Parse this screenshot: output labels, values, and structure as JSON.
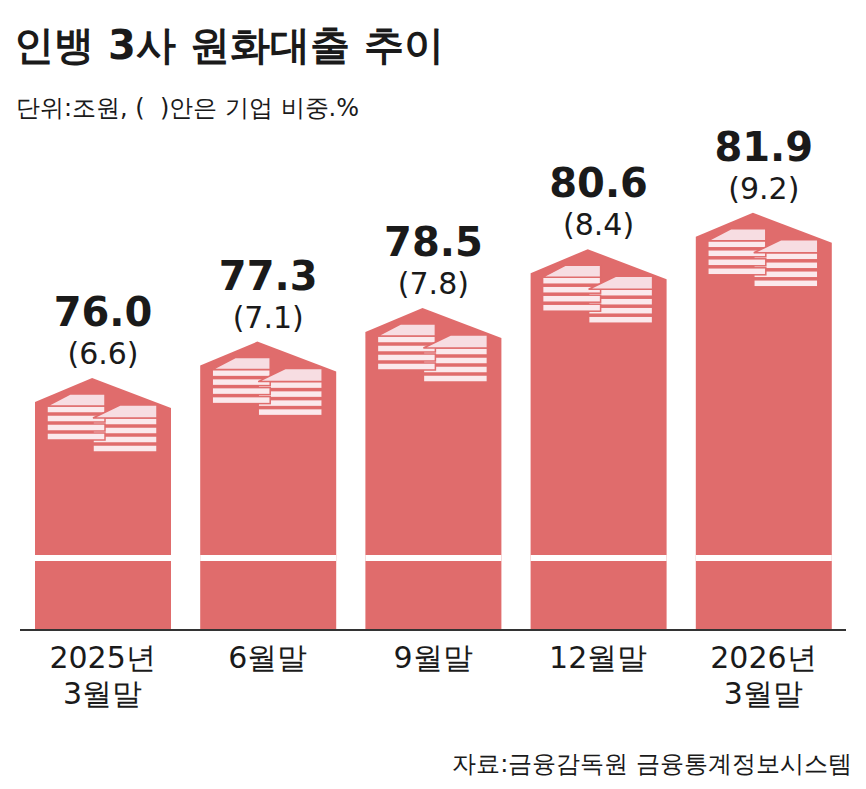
{
  "chart_data": {
    "type": "bar",
    "title": "인뱅 3사 원화대출 추이",
    "subtitle": "단위:조원, (  )안은 기업 비중.%",
    "source": "자료:금융감독원 금융통계정보시스템",
    "categories": [
      "2025년\n3월말",
      "6월말",
      "9월말",
      "12월말",
      "2026년\n3월말"
    ],
    "values": [
      76.0,
      77.3,
      78.5,
      80.6,
      81.9
    ],
    "value_labels": [
      "76.0",
      "77.3",
      "78.5",
      "80.6",
      "81.9"
    ],
    "shares": [
      6.6,
      7.1,
      7.8,
      8.4,
      9.2
    ],
    "share_labels": [
      "(6.6)",
      "(7.1)",
      "(7.8)",
      "(8.4)",
      "(9.2)"
    ],
    "color": "#e06c6c",
    "ylim": [
      67,
      84
    ],
    "tick_labels": false,
    "data_labels": true,
    "grid": false
  }
}
